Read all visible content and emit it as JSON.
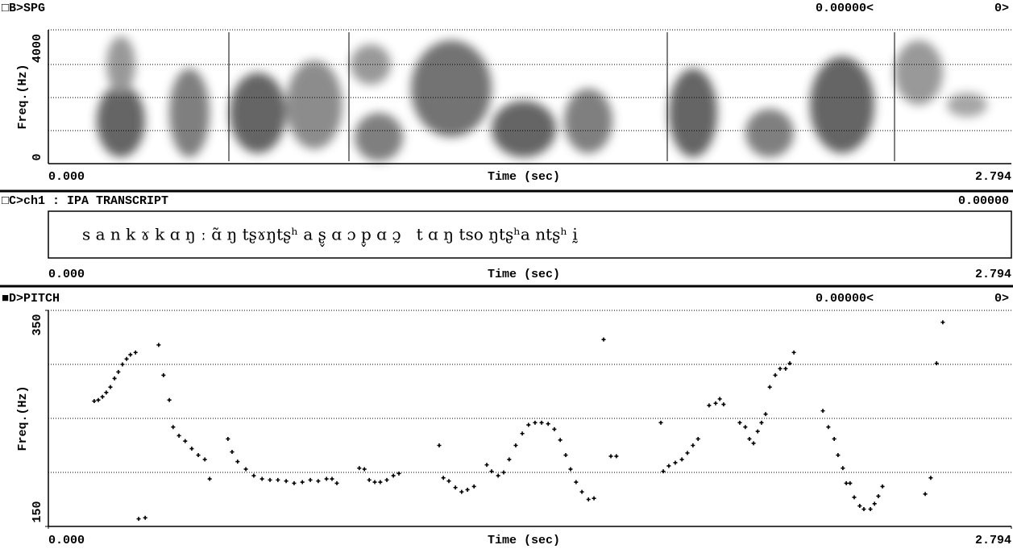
{
  "spectrogram": {
    "header": "□B>SPG",
    "cursor": "0.00000<",
    "cursor_count": "0>",
    "y_label": "Freq.(Hz)",
    "y_ticks": [
      "4000",
      "0"
    ],
    "x_start": "0.000",
    "x_label": "Time (sec)",
    "x_end": "2.794"
  },
  "transcript": {
    "header": "□C>ch1 : IPA TRANSCRIPT",
    "cursor": "0.00000",
    "text": "s a n k ɤ k ɑ ŋ ː ɑ̃ ŋ tʂɤŋtʂʰ a ʂ̬ ɑ ɔ p̬ ɑ ɔ̰   t ɑ ŋ tso ŋtʂʰa ntʂʰ ḭ",
    "x_start": "0.000",
    "x_label": "Time (sec)",
    "x_end": "2.794"
  },
  "pitch": {
    "header": "■D>PITCH",
    "cursor": "0.00000<",
    "cursor_count": "0>",
    "y_label": "Freq.(Hz)",
    "x_label": "Time (sec)",
    "ylim": [
      150,
      350
    ],
    "yticks": [
      150,
      350
    ],
    "ygrid": [
      200,
      250,
      300
    ],
    "xlim": [
      0,
      2.794
    ],
    "xticks": [
      {
        "value": 0,
        "label": "0.000"
      },
      2.794
    ],
    "x": [
      0.133,
      0.145,
      0.157,
      0.168,
      0.18,
      0.192,
      0.203,
      0.215,
      0.227,
      0.238,
      0.253,
      0.262,
      0.281,
      0.32,
      0.334,
      0.351,
      0.362,
      0.379,
      0.397,
      0.416,
      0.435,
      0.454,
      0.468,
      0.521,
      0.533,
      0.549,
      0.573,
      0.596,
      0.62,
      0.643,
      0.666,
      0.69,
      0.713,
      0.737,
      0.76,
      0.783,
      0.807,
      0.823,
      0.837,
      0.902,
      0.917,
      0.931,
      0.947,
      0.963,
      0.982,
      1.001,
      1.017,
      1.134,
      1.146,
      1.162,
      1.181,
      1.199,
      1.216,
      1.235,
      1.272,
      1.286,
      1.305,
      1.321,
      1.337,
      1.356,
      1.375,
      1.393,
      1.412,
      1.431,
      1.45,
      1.468,
      1.485,
      1.501,
      1.515,
      1.531,
      1.548,
      1.567,
      1.583,
      1.611,
      1.632,
      1.648,
      1.777,
      1.784,
      1.8,
      1.819,
      1.838,
      1.854,
      1.87,
      1.885,
      1.917,
      1.936,
      1.948,
      1.959,
      2.006,
      2.022,
      2.034,
      2.046,
      2.058,
      2.069,
      2.081,
      2.093,
      2.109,
      2.123,
      2.139,
      2.151,
      2.163,
      2.247,
      2.263,
      2.28,
      2.291,
      2.305,
      2.315,
      2.326,
      2.338,
      2.354,
      2.366,
      2.385,
      2.397,
      2.408,
      2.42,
      2.544,
      2.56,
      2.577,
      2.595
    ],
    "values": [
      266,
      267,
      270,
      274,
      279,
      287,
      293,
      300,
      305,
      309,
      311,
      157,
      158,
      318,
      290,
      267,
      242,
      234,
      229,
      222,
      216,
      212,
      194,
      231,
      219,
      210,
      203,
      197,
      194,
      193,
      193,
      192,
      190,
      191,
      193,
      192,
      194,
      194,
      190,
      204,
      203,
      193,
      191,
      191,
      193,
      197,
      199,
      225,
      195,
      192,
      186,
      182,
      184,
      187,
      207,
      201,
      197,
      200,
      212,
      225,
      236,
      244,
      246,
      246,
      245,
      240,
      230,
      216,
      203,
      191,
      182,
      175,
      176,
      323,
      215,
      215,
      246,
      201,
      206,
      209,
      212,
      218,
      225,
      231,
      262,
      264,
      268,
      263,
      246,
      242,
      231,
      227,
      238,
      246,
      254,
      279,
      290,
      296,
      296,
      301,
      311,
      257,
      242,
      231,
      216,
      204,
      190,
      190,
      177,
      169,
      166,
      166,
      171,
      178,
      187,
      180,
      195,
      301,
      339
    ]
  }
}
